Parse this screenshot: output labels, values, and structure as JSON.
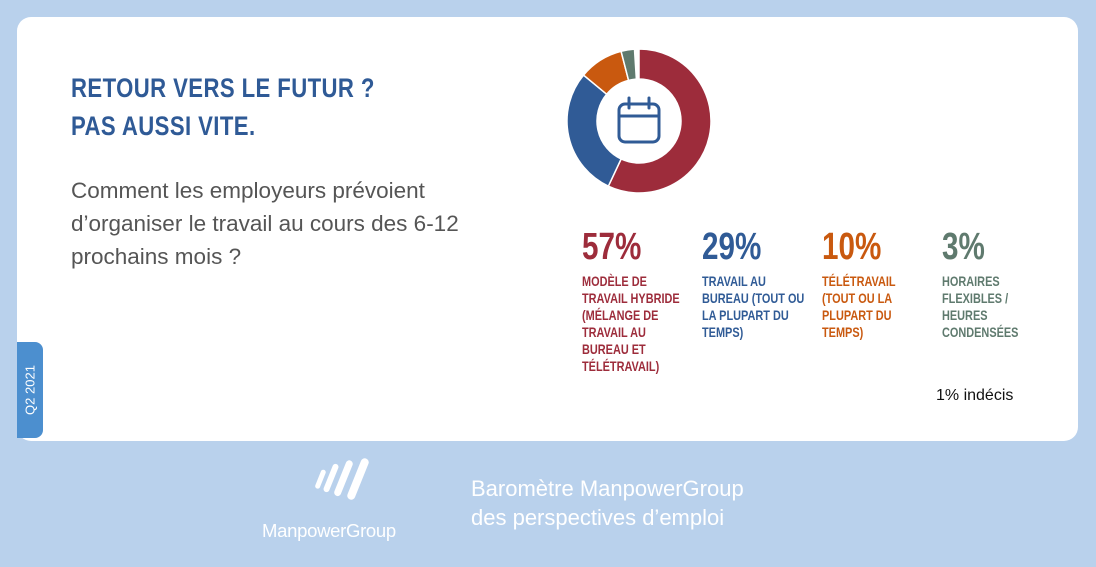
{
  "title": {
    "line1": "RETOUR VERS LE FUTUR ?",
    "line2": "PAS AUSSI VITE."
  },
  "question": "Comment les employeurs prévoient d’organiser le travail au cours des 6-12 prochains mois ?",
  "period_tag": "Q2 2021",
  "chart_data": {
    "type": "pie",
    "donut": true,
    "center_icon": "calendar-icon",
    "slices": [
      {
        "value": 57,
        "label": "57%",
        "name": "Modèle de travail hybride (mélange de travail au bureau et télétravail)",
        "color": "#9d2c3b"
      },
      {
        "value": 29,
        "label": "29%",
        "name": "Travail au bureau (tout ou la plupart du temps)",
        "color": "#305b96"
      },
      {
        "value": 10,
        "label": "10%",
        "name": "Télétravail (tout ou la plupart du temps)",
        "color": "#c9590f"
      },
      {
        "value": 3,
        "label": "3%",
        "name": "Horaires flexibles / heures condensées",
        "color": "#5f7a6e"
      }
    ],
    "note": "1% indécis"
  },
  "footer": {
    "logo_text": "ManpowerGroup",
    "baro_line1": "Baromètre ManpowerGroup",
    "baro_line2": "des perspectives d’emploi"
  }
}
